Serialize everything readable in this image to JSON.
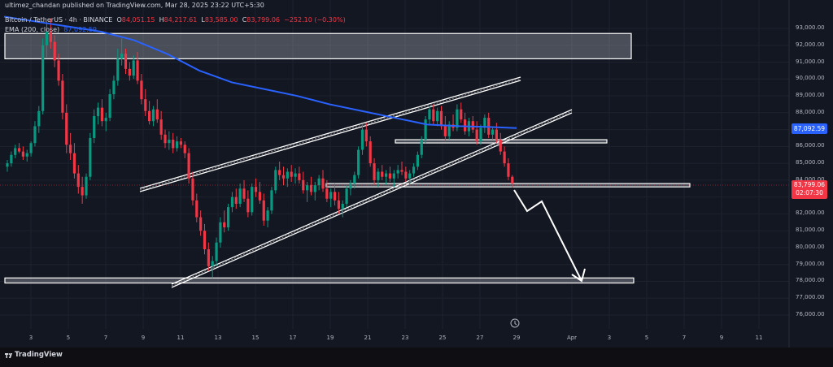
{
  "publisher": "ultimez_chandan published on TradingView.com, Mar 28, 2025 23:22 UTC+5:30",
  "symbol": {
    "name": "Bitcoin / TetherUS · 4h · BINANCE",
    "o_label": "O",
    "o": "84,051.15",
    "h_label": "H",
    "h": "84,217.61",
    "l_label": "L",
    "l": "83,585.00",
    "c_label": "C",
    "c": "83,799.06",
    "change": "−252.10 (−0.30%)"
  },
  "ema": {
    "label": "EMA (200, close)",
    "value": "87,092.59"
  },
  "price_tags": {
    "ema": "87,092.59",
    "last": "83,799.06",
    "countdown": "02:07:30"
  },
  "colors": {
    "bull": "#089981",
    "bear": "#f23645",
    "ema": "#2962ff",
    "bg": "#131722"
  },
  "footer": {
    "brand": "TradingView"
  },
  "chart_data": {
    "type": "candlestick",
    "y_axis": {
      "ticks": [
        "93,000.00",
        "92,000.00",
        "91,000.00",
        "90,000.00",
        "89,000.00",
        "88,000.00",
        "87,000.00",
        "86,000.00",
        "85,000.00",
        "84,000.00",
        "83,000.00",
        "82,000.00",
        "81,000.00",
        "80,000.00",
        "79,000.00",
        "78,000.00",
        "77,000.00",
        "76,000.00"
      ],
      "range": [
        75500,
        93600
      ]
    },
    "x_axis": {
      "ticks": [
        "3",
        "5",
        "7",
        "9",
        "11",
        "13",
        "15",
        "17",
        "19",
        "21",
        "23",
        "25",
        "27",
        "29",
        "Apr",
        "3",
        "5",
        "7",
        "9",
        "11"
      ]
    },
    "zones": [
      {
        "from": 91200,
        "to": 92700
      },
      {
        "from": 86300,
        "to": 86400
      },
      {
        "from": 83600,
        "to": 83800
      },
      {
        "from": 77900,
        "to": 78200
      }
    ],
    "ema200": [
      [
        0,
        93700
      ],
      [
        40,
        93400
      ],
      [
        80,
        93100
      ],
      [
        120,
        92800
      ],
      [
        160,
        92300
      ],
      [
        200,
        91500
      ],
      [
        240,
        90500
      ],
      [
        280,
        89800
      ],
      [
        320,
        89400
      ],
      [
        360,
        89000
      ],
      [
        400,
        88500
      ],
      [
        440,
        88100
      ],
      [
        480,
        87700
      ],
      [
        520,
        87300
      ],
      [
        560,
        87200
      ],
      [
        600,
        87150
      ],
      [
        630,
        87090
      ]
    ],
    "candles": [
      [
        0,
        84800,
        85200,
        84500,
        85000
      ],
      [
        1,
        85000,
        85700,
        84800,
        85500
      ],
      [
        2,
        85500,
        86100,
        85300,
        85900
      ],
      [
        3,
        85900,
        86200,
        85600,
        85700
      ],
      [
        4,
        85700,
        86000,
        85200,
        85400
      ],
      [
        5,
        85400,
        85800,
        85100,
        85600
      ],
      [
        6,
        85600,
        86300,
        85400,
        86200
      ],
      [
        7,
        86200,
        87500,
        86000,
        87200
      ],
      [
        8,
        87200,
        88400,
        86800,
        88100
      ],
      [
        9,
        88100,
        92400,
        87900,
        92000
      ],
      [
        10,
        92000,
        93400,
        91300,
        92800
      ],
      [
        11,
        92800,
        93600,
        91800,
        92200
      ],
      [
        12,
        92200,
        92600,
        90700,
        91100
      ],
      [
        13,
        91100,
        91500,
        89600,
        89900
      ],
      [
        14,
        89900,
        90300,
        87600,
        88000
      ],
      [
        15,
        88000,
        88500,
        85600,
        86100
      ],
      [
        16,
        86100,
        86800,
        85200,
        85600
      ],
      [
        17,
        85600,
        86200,
        84100,
        84400
      ],
      [
        18,
        84400,
        84900,
        83200,
        83600
      ],
      [
        19,
        83600,
        84200,
        82600,
        83100
      ],
      [
        20,
        83100,
        84400,
        82900,
        84200
      ],
      [
        21,
        84200,
        86800,
        84000,
        86500
      ],
      [
        22,
        86500,
        88200,
        86200,
        87800
      ],
      [
        23,
        87800,
        88600,
        87300,
        88300
      ],
      [
        24,
        88300,
        88800,
        87200,
        87500
      ],
      [
        25,
        87500,
        88000,
        86900,
        87700
      ],
      [
        26,
        87700,
        89400,
        87500,
        89100
      ],
      [
        27,
        89100,
        90200,
        88800,
        89900
      ],
      [
        28,
        89900,
        91800,
        89600,
        91200
      ],
      [
        29,
        91200,
        92400,
        90800,
        91500
      ],
      [
        30,
        91500,
        91800,
        90300,
        90600
      ],
      [
        31,
        90600,
        91000,
        89900,
        90200
      ],
      [
        32,
        90200,
        91400,
        90000,
        91100
      ],
      [
        33,
        91100,
        91600,
        89700,
        89900
      ],
      [
        34,
        89900,
        90300,
        88500,
        88800
      ],
      [
        35,
        88800,
        89400,
        87800,
        88100
      ],
      [
        36,
        88100,
        88700,
        87300,
        87500
      ],
      [
        37,
        87500,
        88400,
        87200,
        88200
      ],
      [
        38,
        88200,
        88800,
        87400,
        87600
      ],
      [
        39,
        87600,
        88100,
        86400,
        86700
      ],
      [
        40,
        86700,
        87000,
        85900,
        86200
      ],
      [
        41,
        86200,
        86900,
        85800,
        86400
      ],
      [
        42,
        86400,
        86800,
        85600,
        85900
      ],
      [
        43,
        85900,
        86600,
        85700,
        86300
      ],
      [
        44,
        86300,
        86500,
        85900,
        86100
      ],
      [
        45,
        86100,
        86300,
        85300,
        85600
      ],
      [
        46,
        85600,
        85900,
        83800,
        84100
      ],
      [
        47,
        84100,
        84500,
        82500,
        82800
      ],
      [
        48,
        82800,
        83200,
        81500,
        81800
      ],
      [
        49,
        81800,
        82200,
        80700,
        81000
      ],
      [
        50,
        81000,
        81400,
        79600,
        79900
      ],
      [
        51,
        79900,
        80300,
        78600,
        78900
      ],
      [
        52,
        78900,
        79500,
        78200,
        79200
      ],
      [
        53,
        79200,
        80600,
        78900,
        80300
      ],
      [
        54,
        80300,
        81800,
        80000,
        81500
      ],
      [
        55,
        81500,
        82200,
        80900,
        81200
      ],
      [
        56,
        81200,
        82600,
        81000,
        82400
      ],
      [
        57,
        82400,
        83300,
        82100,
        83000
      ],
      [
        58,
        83000,
        83500,
        82300,
        82600
      ],
      [
        59,
        82600,
        83800,
        82400,
        83500
      ],
      [
        60,
        83500,
        84000,
        82700,
        82900
      ],
      [
        61,
        82900,
        83400,
        81800,
        82100
      ],
      [
        62,
        82100,
        83800,
        81900,
        83600
      ],
      [
        63,
        83600,
        84100,
        83000,
        83300
      ],
      [
        64,
        83300,
        83900,
        82600,
        82800
      ],
      [
        65,
        82800,
        83200,
        81300,
        81600
      ],
      [
        66,
        81600,
        82400,
        81200,
        82200
      ],
      [
        67,
        82200,
        83600,
        82000,
        83400
      ],
      [
        68,
        83400,
        84800,
        83200,
        84600
      ],
      [
        69,
        84600,
        85100,
        84000,
        84300
      ],
      [
        70,
        84300,
        84800,
        83700,
        84100
      ],
      [
        71,
        84100,
        84700,
        83600,
        84500
      ],
      [
        72,
        84500,
        84900,
        83900,
        84200
      ],
      [
        73,
        84200,
        84700,
        83800,
        84400
      ],
      [
        74,
        84400,
        84800,
        83800,
        84000
      ],
      [
        75,
        84000,
        84500,
        83200,
        83400
      ],
      [
        76,
        83400,
        83900,
        82700,
        83700
      ],
      [
        77,
        83700,
        84200,
        83100,
        83300
      ],
      [
        78,
        83300,
        83900,
        82800,
        83700
      ],
      [
        79,
        83700,
        84300,
        83400,
        84100
      ],
      [
        80,
        84100,
        84600,
        83300,
        83500
      ],
      [
        81,
        83500,
        84000,
        82700,
        82900
      ],
      [
        82,
        82900,
        83500,
        82400,
        83300
      ],
      [
        83,
        83300,
        83800,
        82500,
        82800
      ],
      [
        84,
        82800,
        83300,
        82000,
        82300
      ],
      [
        85,
        82300,
        82800,
        81800,
        82600
      ],
      [
        86,
        82600,
        83700,
        82400,
        83500
      ],
      [
        87,
        83500,
        84000,
        83100,
        83800
      ],
      [
        88,
        83800,
        84500,
        83500,
        84300
      ],
      [
        89,
        84300,
        86000,
        84100,
        85800
      ],
      [
        90,
        85800,
        87300,
        85500,
        87000
      ],
      [
        91,
        87000,
        87400,
        86000,
        86300
      ],
      [
        92,
        86300,
        86600,
        84800,
        85000
      ],
      [
        93,
        85000,
        85300,
        83700,
        84000
      ],
      [
        94,
        84000,
        84700,
        83600,
        84500
      ],
      [
        95,
        84500,
        84900,
        84000,
        84200
      ],
      [
        96,
        84200,
        84600,
        83700,
        84400
      ],
      [
        97,
        84400,
        84800,
        83900,
        84100
      ],
      [
        98,
        84100,
        84600,
        83600,
        84400
      ],
      [
        99,
        84400,
        84900,
        84100,
        84600
      ],
      [
        100,
        84600,
        85100,
        84300,
        84500
      ],
      [
        101,
        84500,
        84800,
        83900,
        84100
      ],
      [
        102,
        84100,
        84600,
        83700,
        84400
      ],
      [
        103,
        84400,
        85000,
        84200,
        84800
      ],
      [
        104,
        84800,
        85700,
        84600,
        85500
      ],
      [
        105,
        85500,
        86600,
        85300,
        86400
      ],
      [
        106,
        86400,
        87800,
        86200,
        87600
      ],
      [
        107,
        87600,
        88400,
        87300,
        88200
      ],
      [
        108,
        88200,
        88500,
        87300,
        87500
      ],
      [
        109,
        87500,
        88300,
        87200,
        88100
      ],
      [
        110,
        88100,
        88400,
        87000,
        87200
      ],
      [
        111,
        87200,
        87800,
        86300,
        86600
      ],
      [
        112,
        86600,
        87500,
        86400,
        87300
      ],
      [
        113,
        87300,
        87900,
        86900,
        87100
      ],
      [
        114,
        87100,
        88500,
        86900,
        88200
      ],
      [
        115,
        88200,
        88600,
        87400,
        87600
      ],
      [
        116,
        87600,
        88000,
        86700,
        86900
      ],
      [
        117,
        86900,
        87700,
        86600,
        87500
      ],
      [
        118,
        87500,
        87800,
        86800,
        87000
      ],
      [
        119,
        87000,
        87500,
        86100,
        86300
      ],
      [
        120,
        86300,
        87300,
        86100,
        87100
      ],
      [
        121,
        87100,
        87900,
        86800,
        87700
      ],
      [
        122,
        87700,
        88000,
        86500,
        86700
      ],
      [
        123,
        86700,
        87200,
        86400,
        87000
      ],
      [
        124,
        87000,
        87400,
        86200,
        86400
      ],
      [
        125,
        86400,
        86800,
        85500,
        85700
      ],
      [
        126,
        85700,
        86000,
        84800,
        85000
      ],
      [
        127,
        85000,
        85300,
        84000,
        84200
      ],
      [
        128,
        84200,
        84300,
        83580,
        83800
      ]
    ]
  }
}
